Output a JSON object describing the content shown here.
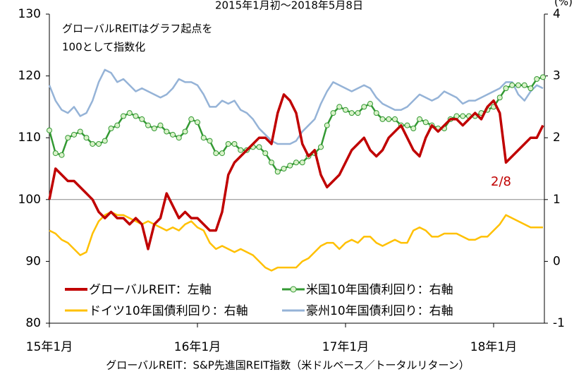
{
  "chart_data": {
    "type": "line",
    "title": "2015年1月初～2018年5月8日",
    "y2_unit": "(%)",
    "note_lines": [
      "グローバルREITはグラフ起点を",
      "100として指数化"
    ],
    "annotation": "2/8",
    "source": "グローバルREIT：S&P先進国REIT指数（米ドルベース／トータルリターン）",
    "categories": [
      "15年1月",
      null,
      null,
      null,
      null,
      null,
      null,
      null,
      null,
      null,
      null,
      null,
      null,
      null,
      null,
      null,
      null,
      null,
      null,
      null,
      null,
      null,
      null,
      null,
      "16年1月",
      null,
      null,
      null,
      null,
      null,
      null,
      null,
      null,
      null,
      null,
      null,
      null,
      null,
      null,
      null,
      null,
      null,
      null,
      null,
      null,
      null,
      null,
      null,
      "17年1月",
      null,
      null,
      null,
      null,
      null,
      null,
      null,
      null,
      null,
      null,
      null,
      null,
      null,
      null,
      null,
      null,
      null,
      null,
      null,
      null,
      null,
      null,
      null,
      "18年1月",
      null,
      null,
      null,
      null,
      null,
      null,
      null,
      null
    ],
    "ylim": [
      80,
      130
    ],
    "yticks": [
      80,
      90,
      100,
      110,
      120,
      130
    ],
    "y2lim": [
      -1,
      4
    ],
    "y2ticks": [
      -1,
      0,
      1,
      2,
      3,
      4
    ],
    "hline": 100,
    "series": [
      {
        "name": "グローバルREIT：左軸",
        "color": "#c00000",
        "axis": "y",
        "values": [
          100,
          105,
          104,
          103,
          103,
          102,
          101,
          100,
          98,
          97,
          98,
          97,
          97,
          96,
          97,
          96,
          92,
          96,
          97,
          101,
          99,
          97,
          98,
          97,
          97,
          96,
          95,
          95,
          98,
          104,
          106,
          107,
          108,
          109,
          110,
          110,
          109,
          114,
          117,
          116,
          114,
          109,
          107,
          108,
          104,
          102,
          103,
          104,
          106,
          108,
          109,
          110,
          108,
          107,
          108,
          110,
          111,
          112,
          110,
          108,
          107,
          110,
          112,
          111,
          112,
          113,
          113,
          112,
          113,
          114,
          113,
          115,
          116,
          114,
          106,
          107,
          108,
          109,
          110,
          110,
          112
        ]
      },
      {
        "name": "米国10年国債利回り：右軸",
        "color": "#339933",
        "marker_fill": "#d9f2c9",
        "axis": "y2",
        "values": [
          2.12,
          1.75,
          1.72,
          2.0,
          2.05,
          2.1,
          2.0,
          1.9,
          1.9,
          1.95,
          2.15,
          2.2,
          2.35,
          2.4,
          2.35,
          2.3,
          2.2,
          2.15,
          2.2,
          2.1,
          2.05,
          2.0,
          2.1,
          2.3,
          2.25,
          2.0,
          1.95,
          1.75,
          1.75,
          1.9,
          1.9,
          1.8,
          1.8,
          1.85,
          1.85,
          1.75,
          1.6,
          1.45,
          1.5,
          1.55,
          1.6,
          1.6,
          1.7,
          1.75,
          1.85,
          2.2,
          2.4,
          2.5,
          2.45,
          2.4,
          2.4,
          2.5,
          2.55,
          2.4,
          2.3,
          2.3,
          2.3,
          2.2,
          2.2,
          2.15,
          2.3,
          2.25,
          2.2,
          2.15,
          2.15,
          2.3,
          2.35,
          2.35,
          2.35,
          2.35,
          2.4,
          2.45,
          2.5,
          2.65,
          2.8,
          2.85,
          2.85,
          2.85,
          2.8,
          2.95,
          2.98
        ]
      },
      {
        "name": "ドイツ10年国債利回り：右軸",
        "color": "#ffc000",
        "axis": "y2",
        "values": [
          0.5,
          0.45,
          0.35,
          0.3,
          0.2,
          0.1,
          0.15,
          0.45,
          0.65,
          0.75,
          0.8,
          0.75,
          0.75,
          0.7,
          0.65,
          0.6,
          0.65,
          0.6,
          0.55,
          0.5,
          0.55,
          0.5,
          0.6,
          0.65,
          0.55,
          0.5,
          0.3,
          0.2,
          0.25,
          0.2,
          0.15,
          0.2,
          0.15,
          0.1,
          0.0,
          -0.1,
          -0.15,
          -0.1,
          -0.1,
          -0.1,
          -0.1,
          0.0,
          0.05,
          0.15,
          0.25,
          0.3,
          0.3,
          0.2,
          0.3,
          0.35,
          0.3,
          0.4,
          0.4,
          0.3,
          0.25,
          0.3,
          0.35,
          0.3,
          0.3,
          0.5,
          0.55,
          0.5,
          0.4,
          0.4,
          0.45,
          0.45,
          0.45,
          0.4,
          0.35,
          0.35,
          0.4,
          0.4,
          0.5,
          0.6,
          0.75,
          0.7,
          0.65,
          0.6,
          0.55,
          0.55,
          0.55
        ]
      },
      {
        "name": "豪州10年国債利回り：右軸",
        "color": "#95b3d7",
        "axis": "y2",
        "values": [
          2.85,
          2.6,
          2.45,
          2.4,
          2.5,
          2.35,
          2.4,
          2.6,
          2.9,
          3.1,
          3.05,
          2.9,
          2.95,
          2.85,
          2.75,
          2.8,
          2.75,
          2.7,
          2.65,
          2.7,
          2.8,
          2.95,
          2.9,
          2.9,
          2.85,
          2.7,
          2.5,
          2.5,
          2.6,
          2.55,
          2.6,
          2.45,
          2.4,
          2.3,
          2.15,
          2.05,
          1.95,
          1.9,
          1.9,
          1.9,
          1.95,
          2.1,
          2.2,
          2.3,
          2.55,
          2.75,
          2.9,
          2.85,
          2.8,
          2.75,
          2.8,
          2.85,
          2.8,
          2.65,
          2.55,
          2.5,
          2.45,
          2.45,
          2.5,
          2.6,
          2.7,
          2.65,
          2.6,
          2.65,
          2.75,
          2.7,
          2.65,
          2.55,
          2.6,
          2.6,
          2.65,
          2.7,
          2.75,
          2.8,
          2.9,
          2.9,
          2.7,
          2.6,
          2.75,
          2.85,
          2.8
        ]
      }
    ]
  }
}
